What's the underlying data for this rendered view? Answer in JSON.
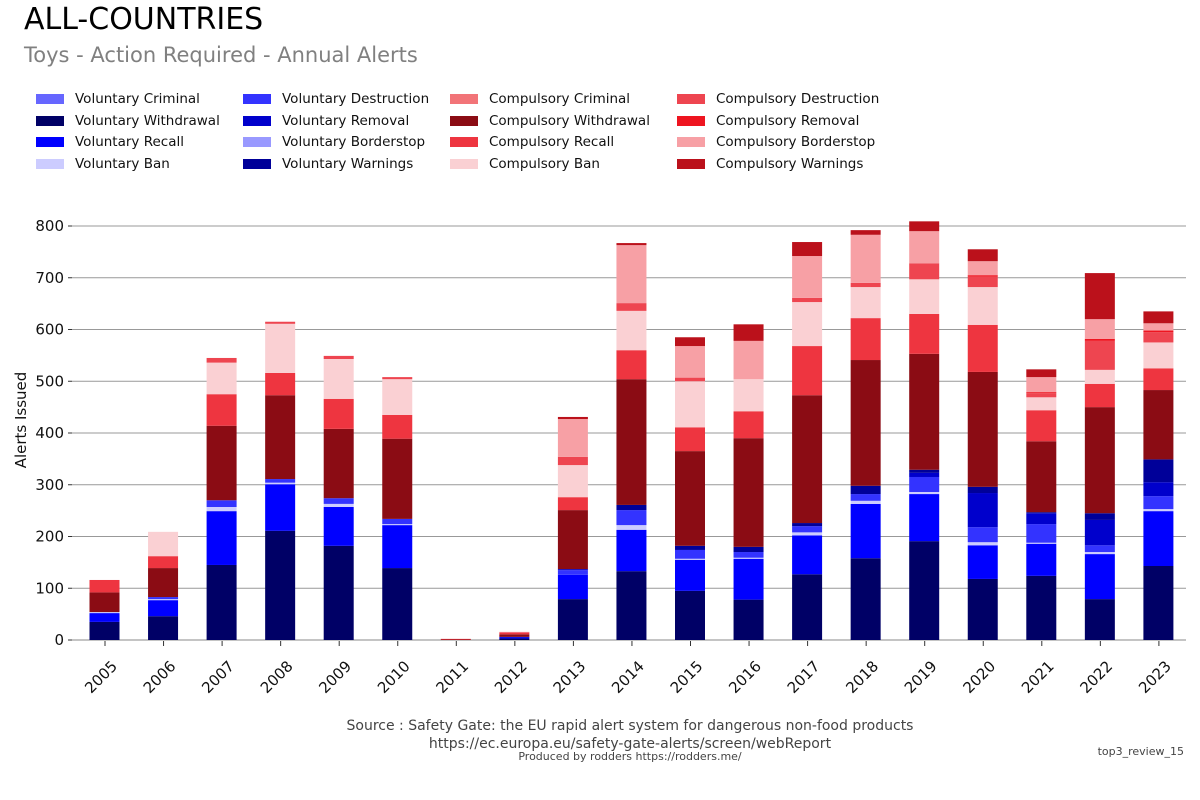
{
  "title": "ALL-COUNTRIES",
  "subtitle": "Toys - Action Required - Annual Alerts",
  "footer": {
    "source": "Source : Safety Gate: the EU rapid alert system for dangerous non-food products",
    "url": "https://ec.europa.eu/safety-gate-alerts/screen/webReport",
    "produced_by": "Produced by rodders https://rodders.me/",
    "tag": "top3_review_15"
  },
  "chart_data": {
    "type": "bar",
    "stacked": true,
    "title": "ALL-COUNTRIES",
    "subtitle": "Toys - Action Required - Annual Alerts",
    "xlabel": "",
    "ylabel": "Alerts Issued",
    "ylim": [
      0,
      830
    ],
    "yticks": [
      0,
      100,
      200,
      300,
      400,
      500,
      600,
      700,
      800
    ],
    "grid": true,
    "legend_position": "top",
    "categories": [
      "2005",
      "2006",
      "2007",
      "2008",
      "2009",
      "2010",
      "2011",
      "2012",
      "2013",
      "2014",
      "2015",
      "2016",
      "2017",
      "2018",
      "2019",
      "2020",
      "2021",
      "2022",
      "2023"
    ],
    "legend_order": [
      "Voluntary Criminal",
      "Voluntary Withdrawal",
      "Voluntary Recall",
      "Voluntary Ban",
      "Voluntary Destruction",
      "Voluntary Removal",
      "Voluntary Borderstop",
      "Voluntary Warnings",
      "Compulsory Criminal",
      "Compulsory Withdrawal",
      "Compulsory Recall",
      "Compulsory Ban",
      "Compulsory Destruction",
      "Compulsory Removal",
      "Compulsory Borderstop",
      "Compulsory Warnings"
    ],
    "series": [
      {
        "name": "Voluntary Withdrawal",
        "color": "#000066",
        "values": [
          35,
          46,
          145,
          211,
          182,
          139,
          0,
          3,
          79,
          133,
          95,
          78,
          127,
          158,
          191,
          118,
          124,
          79,
          143
        ]
      },
      {
        "name": "Voluntary Recall",
        "color": "#0000ff",
        "values": [
          17,
          31,
          104,
          90,
          75,
          83,
          0,
          2,
          47,
          80,
          60,
          79,
          75,
          105,
          91,
          65,
          62,
          87,
          106
        ]
      },
      {
        "name": "Voluntary Ban",
        "color": "#ccccff",
        "values": [
          2,
          2,
          8,
          3,
          6,
          2,
          0,
          0,
          0,
          9,
          2,
          2,
          6,
          6,
          4,
          6,
          2,
          4,
          4
        ]
      },
      {
        "name": "Voluntary Borderstop",
        "color": "#9999ff",
        "values": [
          0,
          0,
          0,
          0,
          0,
          0,
          0,
          0,
          0,
          0,
          0,
          0,
          0,
          0,
          0,
          0,
          0,
          0,
          0
        ]
      },
      {
        "name": "Voluntary Destruction",
        "color": "#3333ff",
        "values": [
          0,
          4,
          13,
          7,
          11,
          10,
          0,
          0,
          9,
          29,
          17,
          11,
          12,
          13,
          29,
          29,
          36,
          13,
          25
        ]
      },
      {
        "name": "Voluntary Removal",
        "color": "#0000cc",
        "values": [
          0,
          0,
          0,
          0,
          0,
          0,
          0,
          1,
          2,
          0,
          0,
          0,
          0,
          0,
          8,
          66,
          21,
          49,
          27
        ]
      },
      {
        "name": "Voluntary Warnings",
        "color": "#000099",
        "values": [
          0,
          0,
          0,
          0,
          0,
          0,
          0,
          0,
          0,
          10,
          8,
          10,
          6,
          16,
          6,
          12,
          2,
          13,
          44
        ]
      },
      {
        "name": "Voluntary Criminal",
        "color": "#6666ff",
        "values": [
          0,
          0,
          0,
          0,
          0,
          0,
          0,
          0,
          0,
          0,
          0,
          0,
          0,
          0,
          0,
          0,
          0,
          0,
          0
        ]
      },
      {
        "name": "Compulsory Withdrawal",
        "color": "#8b0c14",
        "values": [
          38,
          56,
          144,
          162,
          134,
          155,
          1,
          5,
          114,
          243,
          183,
          210,
          247,
          243,
          224,
          222,
          137,
          205,
          134
        ]
      },
      {
        "name": "Compulsory Recall",
        "color": "#ee3540",
        "values": [
          24,
          23,
          61,
          43,
          58,
          46,
          1,
          4,
          25,
          56,
          46,
          52,
          95,
          81,
          77,
          91,
          60,
          45,
          42
        ]
      },
      {
        "name": "Compulsory Ban",
        "color": "#fad0d3",
        "values": [
          0,
          47,
          61,
          95,
          77,
          69,
          1,
          1,
          62,
          76,
          89,
          62,
          85,
          60,
          67,
          73,
          25,
          27,
          50
        ]
      },
      {
        "name": "Compulsory Destruction",
        "color": "#ee4550",
        "values": [
          0,
          0,
          9,
          4,
          6,
          4,
          0,
          0,
          16,
          15,
          7,
          0,
          8,
          8,
          31,
          20,
          8,
          56,
          20
        ]
      },
      {
        "name": "Compulsory Removal",
        "color": "#ee1520",
        "values": [
          0,
          0,
          0,
          0,
          0,
          0,
          0,
          0,
          0,
          0,
          0,
          0,
          0,
          0,
          0,
          3,
          2,
          4,
          3
        ]
      },
      {
        "name": "Compulsory Borderstop",
        "color": "#f7a0a5",
        "values": [
          0,
          0,
          0,
          0,
          0,
          0,
          0,
          0,
          73,
          112,
          61,
          74,
          81,
          93,
          62,
          27,
          29,
          38,
          14
        ]
      },
      {
        "name": "Compulsory Warnings",
        "color": "#bb111b",
        "values": [
          0,
          0,
          0,
          0,
          0,
          0,
          0,
          0,
          4,
          4,
          17,
          32,
          27,
          9,
          19,
          23,
          15,
          89,
          23
        ]
      },
      {
        "name": "Compulsory Criminal",
        "color": "#f27478",
        "values": [
          0,
          0,
          0,
          0,
          0,
          0,
          0,
          0,
          0,
          0,
          0,
          0,
          0,
          0,
          0,
          0,
          0,
          0,
          0
        ]
      }
    ]
  }
}
